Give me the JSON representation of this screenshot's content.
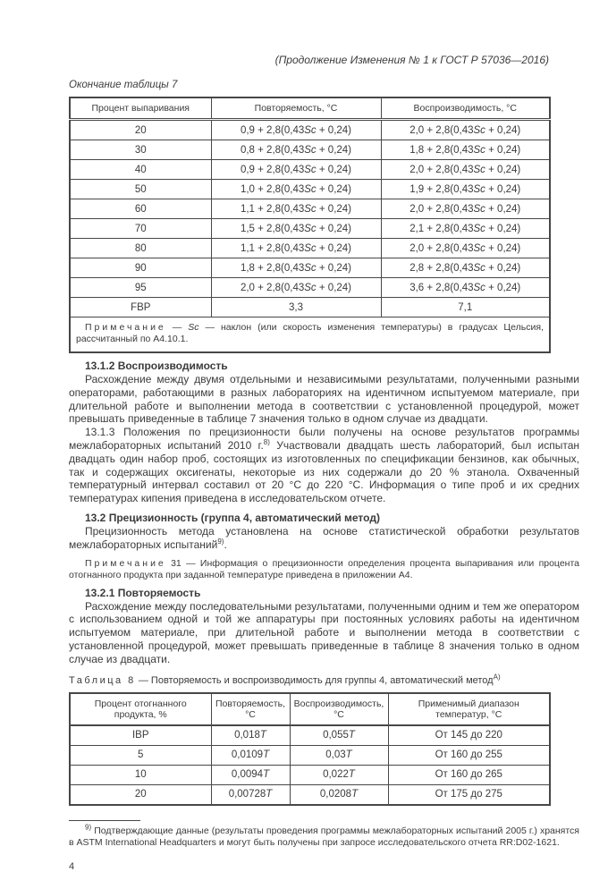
{
  "page": {
    "header": "(Продолжение Изменения № 1 к ГОСТ Р 57036—2016)",
    "table7_caption": "Окончание таблицы 7",
    "page_number": "4"
  },
  "table7": {
    "headers": [
      "Процент выпаривания",
      "Повторяемость, °С",
      "Воспроизводимость, °С"
    ],
    "rows": [
      {
        "percent": "20",
        "repeat": "0,9 + 2,8(0,43Sc + 0,24)",
        "reprod": "2,0 + 2,8(0,43Sc + 0,24)"
      },
      {
        "percent": "30",
        "repeat": "0,8 + 2,8(0,43Sc + 0,24)",
        "reprod": "1,8 + 2,8(0,43Sc + 0,24)"
      },
      {
        "percent": "40",
        "repeat": "0,9 + 2,8(0,43Sc + 0,24)",
        "reprod": "2,0 + 2,8(0,43Sc + 0,24)"
      },
      {
        "percent": "50",
        "repeat": "1,0 + 2,8(0,43Sc + 0,24)",
        "reprod": "1,9 + 2,8(0,43Sc + 0,24)"
      },
      {
        "percent": "60",
        "repeat": "1,1 + 2,8(0,43Sc + 0,24)",
        "reprod": "2,0 + 2,8(0,43Sc + 0,24)"
      },
      {
        "percent": "70",
        "repeat": "1,5 + 2,8(0,43Sc + 0,24)",
        "reprod": "2,1 + 2,8(0,43Sc + 0,24)"
      },
      {
        "percent": "80",
        "repeat": "1,1 + 2,8(0,43Sc + 0,24)",
        "reprod": "2,0 + 2,8(0,43Sc + 0,24)"
      },
      {
        "percent": "90",
        "repeat": "1,8 + 2,8(0,43Sc + 0,24)",
        "reprod": "2,8 + 2,8(0,43Sc + 0,24)"
      },
      {
        "percent": "95",
        "repeat": "2,0 + 2,8(0,43Sc + 0,24)",
        "reprod": "3,6 + 2,8(0,43Sc + 0,24)"
      },
      {
        "percent": "FBP",
        "repeat": "3,3",
        "reprod": "7,1"
      }
    ],
    "note_label": "Примечание",
    "note_text": " — Sc — наклон (или скорость изменения температуры) в градусах Цельсия, рассчитанный по А4.10.1."
  },
  "sections": {
    "h1312": "13.1.2 Воспроизводимость",
    "p1312": "Расхождение между двумя отдельными и независимыми результатами, полученными разными операторами, работающими в разных лабораториях на идентичном испытуемом материале, при длительной работе и выполнении метода в соответствии с установленной процедурой, может превышать приведенные в таблице 7 значения только в одном случае из двадцати.",
    "p1313_part1": "13.1.3 Положения по прецизионности были получены на основе результатов программы межлабораторных испытаний 2010 г.",
    "p1313_sup": "8)",
    "p1313_part2": " Участвовали двадцать шесть лабораторий, был испытан двадцать один набор проб, состоящих из изготовленных по спецификации бензинов, как обычных, так и содержащих оксигенаты, некоторые из них содержали до 20 % этанола. Охваченный температурный интервал составил от 20 °С до 220 °С. Информация о типе проб и их средних температурах кипения приведена в исследовательском отчете.",
    "h132": "13.2 Прецизионность (группа 4, автоматический метод)",
    "p132_part1": "Прецизионность метода установлена на основе статистической обработки результатов межлабораторных испытаний",
    "p132_sup": "9)",
    "p132_part2": ".",
    "note31_label": "Примечание",
    "note31_text": " 31 — Информация о прецизионности определения процента выпаривания или процента отогнанного продукта при заданной температуре приведена в приложении А4.",
    "h1321": "13.2.1 Повторяемость",
    "p1321": "Расхождение между последовательными результатами, полученными одним и тем же оператором с использованием одной и той же аппаратуры при постоянных условиях работы на идентичном испытуемом материале, при длительной работе и выполнении метода в соответствии с установленной процедурой, может превышать приведенные в таблице 8 значения только в одном случае из двадцати."
  },
  "table8": {
    "caption_label": "Таблица 8",
    "caption_text": " — Повторяемость и воспроизводимость для группы 4, автоматический метод",
    "caption_sup": "А)",
    "headers": [
      "Процент отогнанного продукта, %",
      "Повторяемость, °С",
      "Воспроизводимость, °С",
      "Применимый диапазон температур, °С"
    ],
    "rows": [
      {
        "percent": "IBP",
        "repeat": "0,018T",
        "reprod": "0,055T",
        "range": "От 145 до 220"
      },
      {
        "percent": "5",
        "repeat": "0,0109T",
        "reprod": "0,03T",
        "range": "От 160 до 255"
      },
      {
        "percent": "10",
        "repeat": "0,0094T",
        "reprod": "0,022T",
        "range": "От 160 до 265"
      },
      {
        "percent": "20",
        "repeat": "0,00728T",
        "reprod": "0,0208T",
        "range": "От 175 до 275"
      }
    ]
  },
  "footnote": {
    "marker": "9)",
    "text": " Подтверждающие данные (результаты проведения программы межлабораторных испытаний 2005 г.) хранятся в ASTM International Headquarters и могут быть получены при запросе исследовательского отчета RR:D02-1621."
  }
}
